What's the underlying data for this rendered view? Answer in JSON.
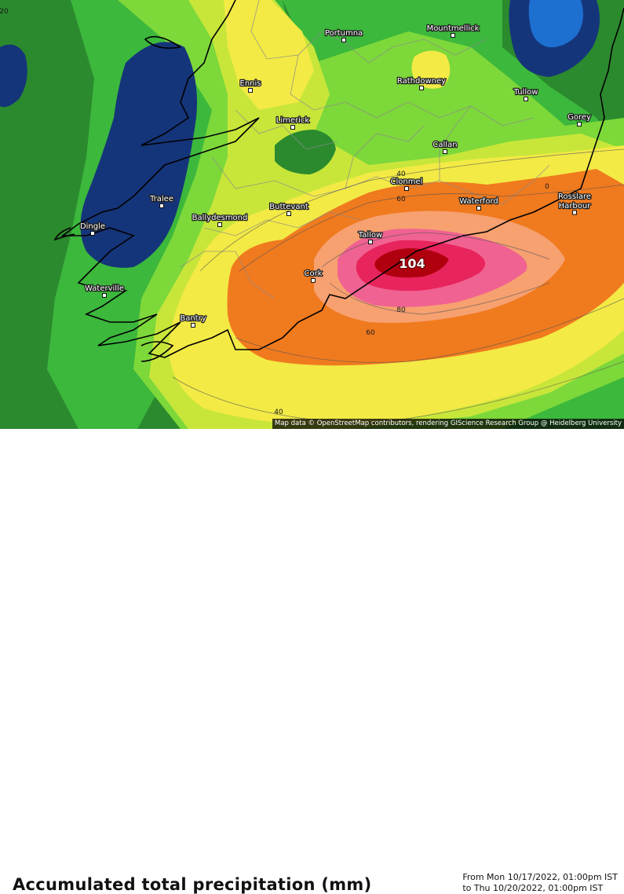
{
  "map": {
    "colors": {
      "deep_blue": "#15357a",
      "blue": "#1d6fd0",
      "dark_green": "#2b8a2e",
      "green": "#3cb83c",
      "light_green": "#7dd83a",
      "yellow_green": "#c8e63a",
      "yellow": "#f3ea45",
      "orange": "#f07a1e",
      "light_orange": "#f7a070",
      "pink": "#f06292",
      "magenta": "#e8245c",
      "dark_red": "#b00010",
      "coast": "#000000",
      "border": "#8a8a8a"
    },
    "towns": [
      {
        "name": "Portumna",
        "id": "portumna"
      },
      {
        "name": "Mountmellick",
        "id": "mountmellick"
      },
      {
        "name": "Ennis",
        "id": "ennis"
      },
      {
        "name": "Rathdowney",
        "id": "rathdowney"
      },
      {
        "name": "Tullow",
        "id": "tullow"
      },
      {
        "name": "Limerick",
        "id": "limerick"
      },
      {
        "name": "Gorey",
        "id": "gorey"
      },
      {
        "name": "Callan",
        "id": "callan"
      },
      {
        "name": "Clonmel",
        "id": "clonmel"
      },
      {
        "name": "Tralee",
        "id": "tralee"
      },
      {
        "name": "Rosslare Harbour",
        "id": "rosslare"
      },
      {
        "name": "Buttevant",
        "id": "buttevant"
      },
      {
        "name": "Waterford",
        "id": "waterford"
      },
      {
        "name": "Ballydesmond",
        "id": "ballydesmond"
      },
      {
        "name": "Dingle",
        "id": "dingle"
      },
      {
        "name": "Tallow",
        "id": "tallow"
      },
      {
        "name": "Cork",
        "id": "cork"
      },
      {
        "name": "Waterville",
        "id": "waterville"
      },
      {
        "name": "Bantry",
        "id": "bantry"
      }
    ],
    "isolines": [
      {
        "value": "40",
        "id": "iso-40-north"
      },
      {
        "value": "60",
        "id": "iso-60-north"
      },
      {
        "value": "0",
        "id": "iso-0"
      },
      {
        "value": "80",
        "id": "iso-80"
      },
      {
        "value": "60",
        "id": "iso-60-south"
      },
      {
        "value": "40",
        "id": "iso-40-south"
      },
      {
        "value": "20",
        "id": "iso-20"
      }
    ],
    "maximum": {
      "value": "104"
    },
    "attribution": "Map data © OpenStreetMap contributors, rendering GIScience Research Group @ Heidelberg University"
  },
  "title": "Accumulated total precipitation (mm)",
  "period": {
    "from": "From Mon 10/17/2022, 01:00pm IST",
    "to": "to Thu 10/20/2022, 01:00pm IST"
  }
}
